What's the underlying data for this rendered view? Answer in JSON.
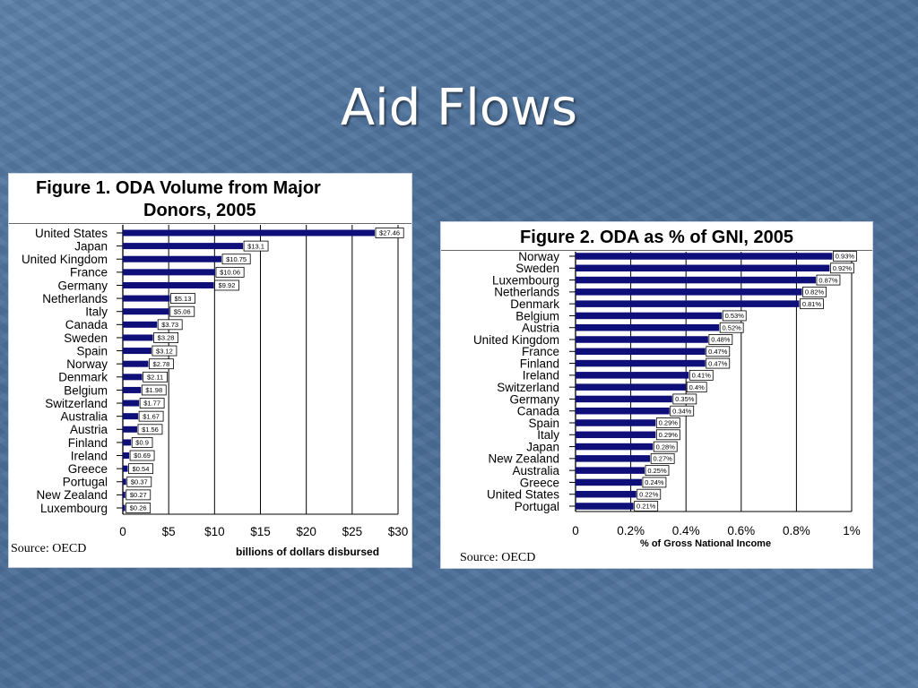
{
  "slide": {
    "title": "Aid Flows"
  },
  "colors": {
    "bar": "#0f0f7a",
    "grid": "#000000",
    "text": "#000000"
  },
  "chart_data": [
    {
      "type": "bar",
      "orientation": "horizontal",
      "title": "Figure 1.  ODA Volume from Major Donors, 2005",
      "title_lines": [
        "Figure 1.  ODA Volume from Major",
        "Donors, 2005"
      ],
      "xlabel": "billions of dollars disbursed",
      "xlim": [
        0,
        30
      ],
      "xticks": [
        0,
        5,
        10,
        15,
        20,
        25,
        30
      ],
      "xtick_labels": [
        "0",
        "$5",
        "$10",
        "$15",
        "$20",
        "$25",
        "$30"
      ],
      "grid": "vertical",
      "source": "Source: OECD",
      "categories": [
        "United States",
        "Japan",
        "United Kingdom",
        "France",
        "Germany",
        "Netherlands",
        "Italy",
        "Canada",
        "Sweden",
        "Spain",
        "Norway",
        "Denmark",
        "Belgium",
        "Switzerland",
        "Australia",
        "Austria",
        "Finland",
        "Ireland",
        "Greece",
        "Portugal",
        "New Zealand",
        "Luxembourg"
      ],
      "values": [
        27.46,
        13.1,
        10.75,
        10.06,
        9.92,
        5.13,
        5.06,
        3.73,
        3.28,
        3.12,
        2.78,
        2.11,
        1.98,
        1.77,
        1.67,
        1.56,
        0.9,
        0.69,
        0.54,
        0.37,
        0.27,
        0.26
      ],
      "value_labels": [
        "$27.46",
        "$13.1",
        "$10.75",
        "$10.06",
        "$9.92",
        "$5.13",
        "$5.06",
        "$3.73",
        "$3.28",
        "$3.12",
        "$2.78",
        "$2.11",
        "$1.98",
        "$1.77",
        "$1.67",
        "$1.56",
        "$0.9",
        "$0.69",
        "$0.54",
        "$0.37",
        "$0.27",
        "$0.26"
      ]
    },
    {
      "type": "bar",
      "orientation": "horizontal",
      "title": "Figure 2.  ODA as % of GNI, 2005",
      "xlabel": "% of Gross National Income",
      "xlim": [
        0,
        1
      ],
      "xticks": [
        0,
        0.2,
        0.4,
        0.6,
        0.8,
        1
      ],
      "xtick_labels": [
        "0",
        "0.2%",
        "0.4%",
        "0.6%",
        "0.8%",
        "1%"
      ],
      "grid": "vertical",
      "source": "Source: OECD",
      "categories": [
        "Norway",
        "Sweden",
        "Luxembourg",
        "Netherlands",
        "Denmark",
        "Belgium",
        "Austria",
        "United Kingdom",
        "France",
        "Finland",
        "Ireland",
        "Switzerland",
        "Germany",
        "Canada",
        "Spain",
        "Italy",
        "Japan",
        "New Zealand",
        "Australia",
        "Greece",
        "United States",
        "Portugal"
      ],
      "values": [
        0.93,
        0.92,
        0.87,
        0.82,
        0.81,
        0.53,
        0.52,
        0.48,
        0.47,
        0.47,
        0.41,
        0.4,
        0.35,
        0.34,
        0.29,
        0.29,
        0.28,
        0.27,
        0.25,
        0.24,
        0.22,
        0.21
      ],
      "value_labels": [
        "0.93%",
        "0.92%",
        "0.87%",
        "0.82%",
        "0.81%",
        "0.53%",
        "0.52%",
        "0.48%",
        "0.47%",
        "0.47%",
        "0.41%",
        "0.4%",
        "0.35%",
        "0.34%",
        "0.29%",
        "0.29%",
        "0.28%",
        "0.27%",
        "0.25%",
        "0.24%",
        "0.22%",
        "0.21%"
      ]
    }
  ]
}
